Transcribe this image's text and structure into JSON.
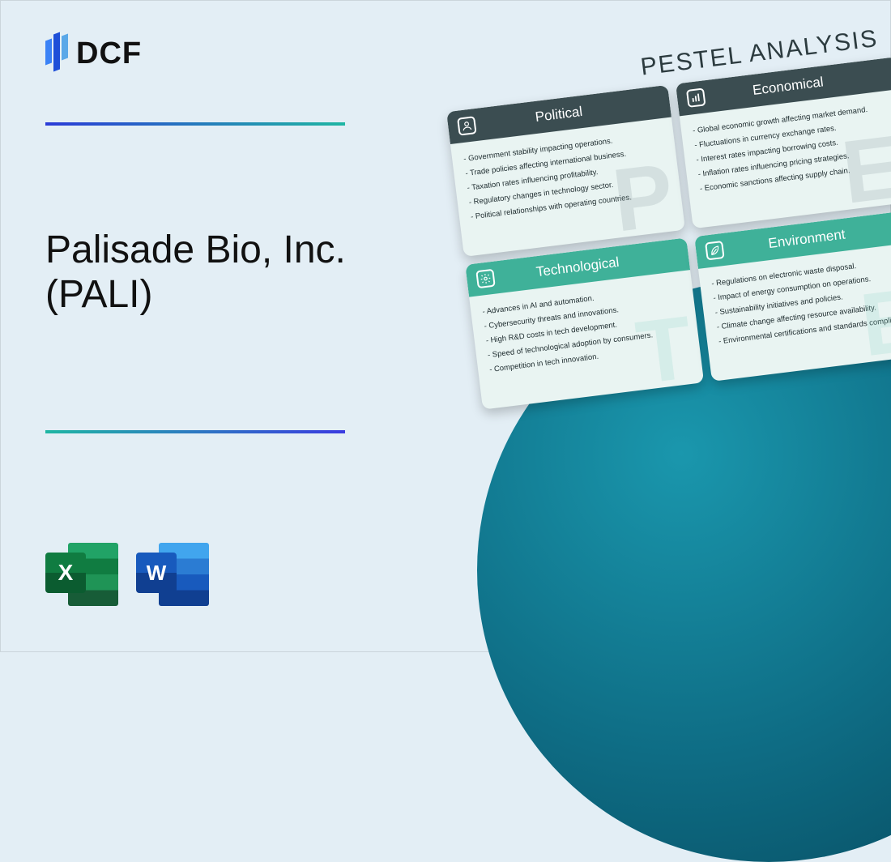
{
  "brand": {
    "name": "DCF"
  },
  "colors": {
    "background": "#e3eef5",
    "logo_bar1": "#3b82f6",
    "logo_bar2": "#1e4fd8",
    "logo_bar3": "#5aa8e8",
    "divider_top_gradient": "linear-gradient(90deg,#2a3bd7,#1fb6a3)",
    "divider_bottom_gradient": "linear-gradient(90deg,#1fb6a3,#3a3be0)",
    "circle_gradient": "radial-gradient(circle at 35% 30%, #1a97ad 0%, #0e6c84 55%, #074a5e 100%)",
    "header_dark": "#3b4d51",
    "header_teal": "#3fb199",
    "watermark_dark": "#8a9ca0",
    "watermark_teal": "#8fd4c6"
  },
  "title": "Palisade Bio, Inc. (PALI)",
  "file_icons": {
    "excel_letter": "X",
    "word_letter": "W"
  },
  "pestel": {
    "heading": "PESTEL ANALYSIS",
    "cards": [
      {
        "title": "Political",
        "letter": "P",
        "icon": "person",
        "items": [
          "Government stability impacting operations.",
          "Trade policies affecting international business.",
          "Taxation rates influencing profitability.",
          "Regulatory changes in technology sector.",
          "Political relationships with operating countries."
        ]
      },
      {
        "title": "Economical",
        "letter": "E",
        "icon": "bars",
        "items": [
          "Global economic growth affecting market demand.",
          "Fluctuations in currency exchange rates.",
          "Interest rates impacting borrowing costs.",
          "Inflation rates influencing pricing strategies.",
          "Economic sanctions affecting supply chain."
        ]
      },
      {
        "title": "Technological",
        "letter": "T",
        "icon": "gear",
        "items": [
          "Advances in AI and automation.",
          "Cybersecurity threats and innovations.",
          "High R&D costs in tech development.",
          "Speed of technological adoption by consumers.",
          "Competition in tech innovation."
        ]
      },
      {
        "title": "Environment",
        "letter": "E",
        "icon": "leaf",
        "items": [
          "Regulations on electronic waste disposal.",
          "Impact of energy consumption on operations.",
          "Sustainability initiatives and policies.",
          "Climate change affecting resource availability.",
          "Environmental certifications and standards compliance."
        ]
      }
    ]
  }
}
